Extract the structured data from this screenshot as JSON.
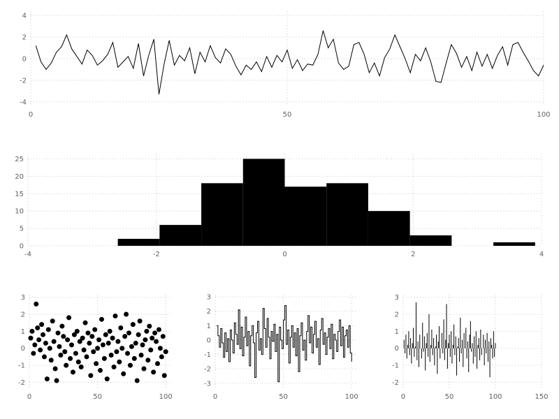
{
  "figure": {
    "background": "#ffffff",
    "grid_color": "#c8c8c8",
    "tick_text_color": "#606060",
    "series_color": "#000000"
  },
  "chart_data": [
    {
      "id": "line-chart",
      "type": "line",
      "title": "",
      "xlabel": "",
      "ylabel": "",
      "xlim": [
        0,
        100
      ],
      "ylim": [
        -4.4,
        4.4
      ],
      "xticks": [
        0,
        50,
        100
      ],
      "yticks": [
        -4,
        -2,
        0,
        2,
        4
      ],
      "x_start": 1,
      "values": [
        1.2,
        -0.3,
        -1.0,
        -0.4,
        0.6,
        1.1,
        2.2,
        0.9,
        0.2,
        -0.5,
        0.8,
        0.3,
        -0.6,
        -0.2,
        0.4,
        1.5,
        -0.8,
        -0.3,
        0.2,
        -0.9,
        1.4,
        -1.6,
        0.3,
        1.8,
        -3.3,
        -0.5,
        1.7,
        -0.6,
        0.3,
        -0.2,
        1.0,
        -1.4,
        0.6,
        -0.3,
        1.2,
        0.1,
        -0.4,
        0.9,
        0.4,
        -0.7,
        -1.5,
        -0.6,
        -1.0,
        -0.3,
        -1.2,
        0.2,
        -0.8,
        0.3,
        -0.3,
        0.8,
        -0.9,
        -0.1,
        -1.1,
        -0.5,
        -0.6,
        0.4,
        2.6,
        1.0,
        1.8,
        -0.4,
        -1.0,
        -0.7,
        1.3,
        1.5,
        0.4,
        -1.3,
        -0.4,
        -1.6,
        0.1,
        0.9,
        2.2,
        1.1,
        0.0,
        -1.3,
        0.4,
        -0.2,
        1.0,
        -0.3,
        -2.1,
        -2.2,
        -0.4,
        1.3,
        0.5,
        -0.8,
        0.2,
        -1.1,
        0.6,
        -0.7,
        0.4,
        -0.9,
        0.3,
        1.1,
        -0.6,
        1.3,
        1.5,
        0.6,
        -0.2,
        -1.1,
        -1.6,
        -0.6
      ]
    },
    {
      "id": "histogram-chart",
      "type": "bar",
      "title": "",
      "xlabel": "",
      "ylabel": "",
      "xlim": [
        -4,
        4
      ],
      "ylim": [
        0,
        26.5
      ],
      "xticks": [
        -4,
        -2,
        0,
        2,
        4
      ],
      "yticks": [
        0,
        5,
        10,
        15,
        20,
        25
      ],
      "bin_edges": [
        -2.6,
        -1.95,
        -1.3,
        -0.65,
        0,
        0.65,
        1.3,
        1.95,
        2.6,
        3.25,
        3.9
      ],
      "counts": [
        2,
        6,
        18,
        25,
        17,
        18,
        10,
        3,
        0,
        1
      ]
    },
    {
      "id": "scatter-chart",
      "type": "scatter",
      "title": "",
      "xlabel": "",
      "ylabel": "",
      "xlim": [
        0,
        104
      ],
      "ylim": [
        -2.35,
        3.15
      ],
      "xticks": [
        0,
        50,
        100
      ],
      "yticks": [
        -2,
        -1,
        0,
        1,
        2,
        3
      ],
      "x_start": 1,
      "values": [
        0.6,
        1.0,
        -0.3,
        0.2,
        2.6,
        1.2,
        0.5,
        -0.1,
        1.4,
        0.8,
        -0.5,
        0.3,
        -1.8,
        1.1,
        0.0,
        -0.7,
        1.6,
        0.4,
        -1.2,
        -1.9,
        0.9,
        0.1,
        -0.4,
        1.3,
        0.7,
        -0.2,
        -1.0,
        0.5,
        1.8,
        -0.6,
        0.2,
        -1.4,
        0.8,
        -0.3,
        1.0,
        -0.8,
        0.4,
        -1.1,
        0.6,
        -0.1,
        1.5,
        -0.5,
        0.9,
        0.3,
        -1.6,
        0.7,
        -0.2,
        1.1,
        -0.9,
        0.0,
        0.5,
        -1.3,
        1.7,
        0.2,
        -0.6,
        0.8,
        -1.8,
        0.3,
        1.0,
        -0.4,
        0.6,
        -1.1,
        1.9,
        -0.2,
        0.4,
        -0.8,
        1.2,
        0.0,
        -1.5,
        0.7,
        2.0,
        -0.3,
        0.9,
        -1.0,
        0.1,
        1.4,
        -0.6,
        0.3,
        -1.9,
        0.8,
        1.6,
        -0.4,
        0.2,
        -1.2,
        0.5,
        1.0,
        -0.7,
        1.3,
        -0.1,
        0.6,
        -1.4,
        0.9,
        0.4,
        -0.9,
        1.1,
        0.0,
        -0.5,
        0.7,
        -1.6,
        -0.2
      ]
    },
    {
      "id": "step-chart",
      "type": "step",
      "title": "",
      "xlabel": "",
      "ylabel": "",
      "xlim": [
        0,
        104
      ],
      "ylim": [
        -3.35,
        3.15
      ],
      "xticks": [
        0,
        50,
        100
      ],
      "yticks": [
        -3,
        -2,
        -1,
        0,
        1,
        2,
        3
      ],
      "x_start": 1,
      "values": [
        1.0,
        0.3,
        -0.5,
        0.8,
        -0.2,
        -1.2,
        0.5,
        -0.8,
        0.1,
        -1.5,
        0.7,
        0.0,
        -0.9,
        1.2,
        0.4,
        -0.3,
        2.1,
        -0.6,
        0.9,
        -1.1,
        0.2,
        1.6,
        -0.4,
        0.6,
        -1.8,
        0.3,
        1.0,
        -0.2,
        -2.6,
        0.5,
        1.3,
        -0.7,
        0.1,
        -1.0,
        2.2,
        0.8,
        -0.5,
        1.5,
        0.2,
        -1.3,
        0.6,
        -0.1,
        1.1,
        -0.8,
        0.4,
        -2.9,
        0.9,
        0.0,
        -0.6,
        1.4,
        2.4,
        -0.3,
        0.7,
        -1.6,
        0.2,
        1.0,
        -0.5,
        0.5,
        -1.1,
        0.8,
        -2.2,
        0.3,
        1.2,
        -0.7,
        0.0,
        -1.4,
        0.6,
        1.7,
        -0.2,
        0.9,
        -0.9,
        0.4,
        1.3,
        -0.5,
        0.1,
        -1.7,
        0.7,
        1.5,
        -0.3,
        0.5,
        -1.0,
        0.2,
        0.8,
        -0.6,
        1.1,
        -1.3,
        0.4,
        0.0,
        -0.8,
        0.6,
        1.4,
        -0.4,
        0.9,
        -1.2,
        0.3,
        0.7,
        -0.5,
        1.0,
        -0.9,
        -1.5
      ]
    },
    {
      "id": "stem-chart",
      "type": "stem",
      "title": "",
      "xlabel": "",
      "ylabel": "",
      "xlim": [
        0,
        150
      ],
      "ylim": [
        -2.35,
        3.15
      ],
      "xticks": [
        0,
        50,
        100,
        150
      ],
      "yticks": [
        -2,
        -1,
        0,
        1,
        2,
        3
      ],
      "x_start": 1,
      "values": [
        0.5,
        -0.3,
        0.8,
        -0.6,
        0.2,
        1.0,
        -0.4,
        0.6,
        -0.9,
        0.3,
        1.2,
        -0.5,
        0.1,
        2.7,
        -0.7,
        0.4,
        -1.1,
        0.8,
        0.0,
        -0.6,
        1.5,
        -0.2,
        0.7,
        -1.3,
        0.3,
        0.9,
        -0.5,
        2.0,
        -0.8,
        0.2,
        1.1,
        -0.4,
        0.6,
        -1.0,
        0.1,
        0.8,
        -1.5,
        0.4,
        1.3,
        -0.6,
        0.0,
        0.9,
        -0.3,
        1.7,
        -0.7,
        0.5,
        2.6,
        -1.2,
        0.3,
        0.8,
        -0.5,
        1.0,
        -0.9,
        0.2,
        1.4,
        -0.4,
        0.7,
        -1.6,
        0.1,
        0.6,
        -0.8,
        1.8,
        -0.3,
        0.5,
        -1.1,
        0.9,
        0.0,
        1.2,
        -0.6,
        0.4,
        -1.4,
        0.8,
        1.6,
        -0.2,
        0.3,
        -0.9,
        0.7,
        -0.5,
        1.0,
        -1.2,
        0.2,
        0.6,
        -0.7,
        1.1,
        -0.4,
        0.0,
        0.8,
        -1.0,
        0.5,
        -0.3,
        0.9,
        -0.8,
        0.4,
        -1.7,
        0.6,
        0.2,
        -0.6,
        1.0,
        -0.5,
        0.3
      ]
    }
  ]
}
